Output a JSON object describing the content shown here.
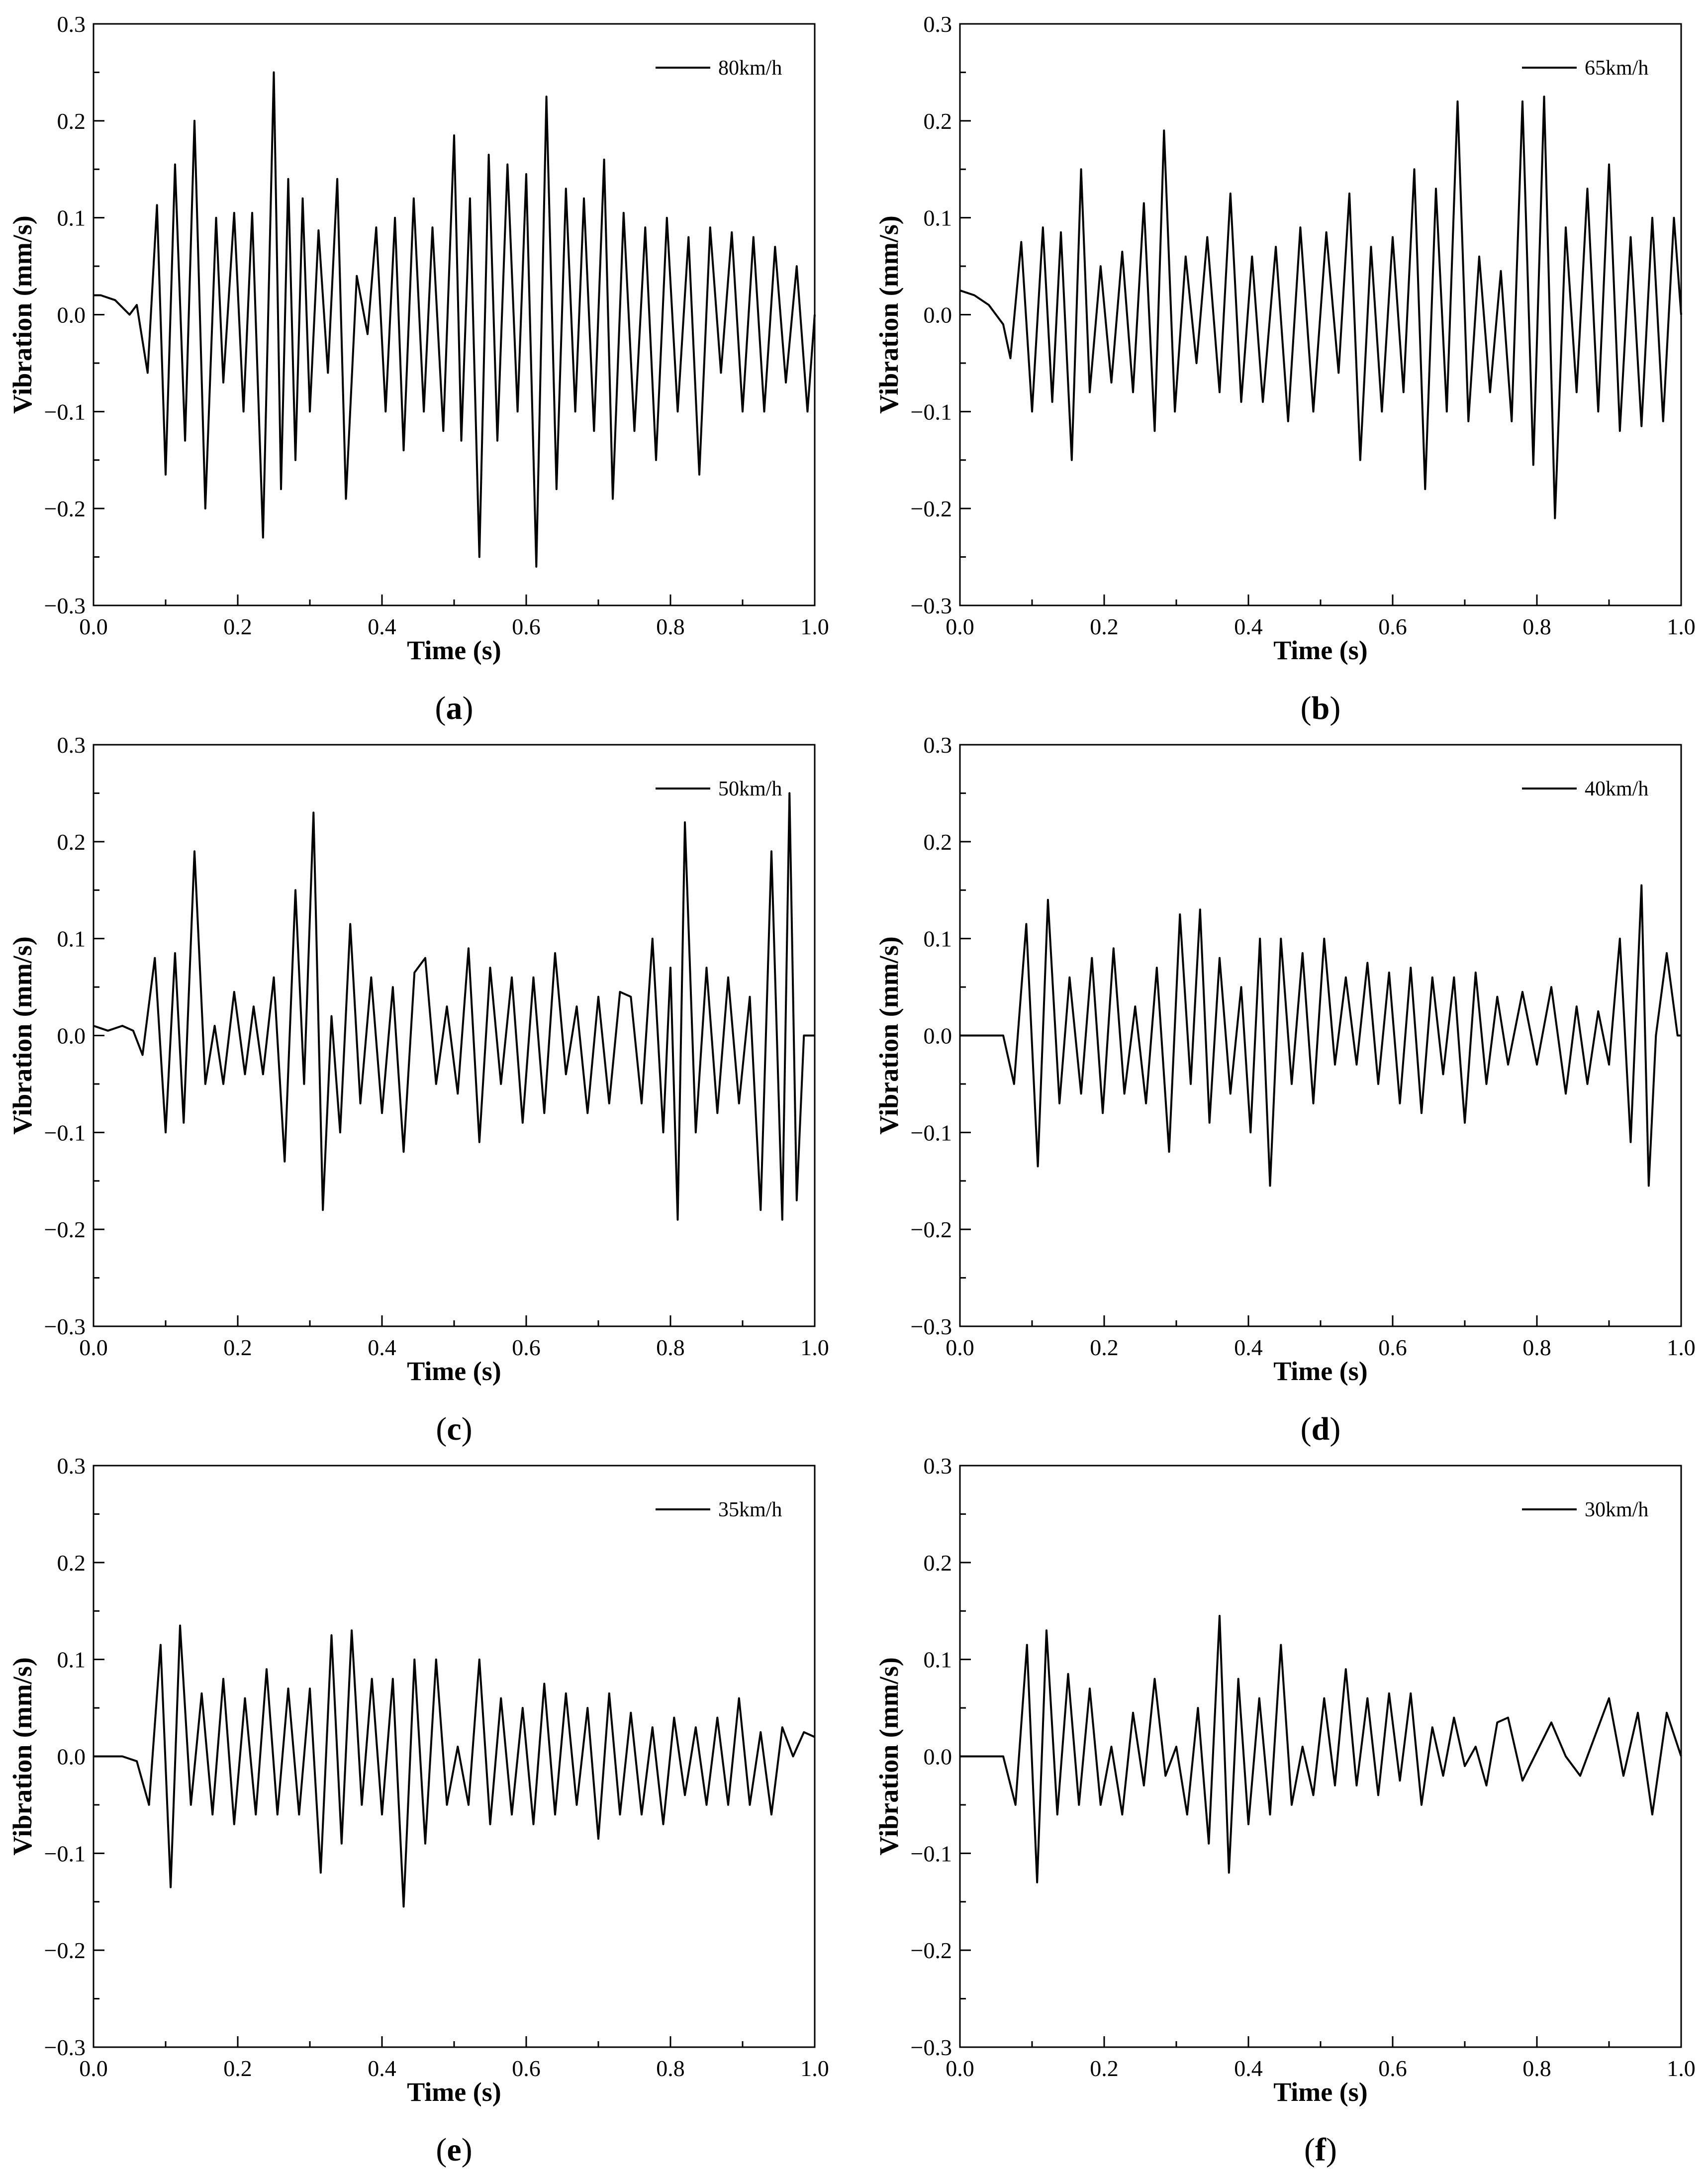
{
  "chart_data": [
    {
      "type": "line",
      "panel": "a",
      "xlabel": "Time (s)",
      "ylabel": "Vibration (mm/s)",
      "xlim": [
        0,
        1.0
      ],
      "ylim": [
        -0.3,
        0.3
      ],
      "xticks": [
        "0.0",
        "0.2",
        "0.4",
        "0.6",
        "0.8",
        "1.0"
      ],
      "yticks": [
        "0.3",
        "0.2",
        "0.1",
        "0.0",
        "−0.1",
        "−0.2",
        "−0.3"
      ],
      "legend_position": "top-right",
      "series": [
        {
          "name": "80km/h",
          "x": [
            0,
            0.01,
            0.03,
            0.05,
            0.06,
            0.075,
            0.088,
            0.1,
            0.113,
            0.127,
            0.14,
            0.155,
            0.17,
            0.18,
            0.195,
            0.208,
            0.22,
            0.235,
            0.25,
            0.26,
            0.27,
            0.28,
            0.29,
            0.3,
            0.312,
            0.325,
            0.338,
            0.35,
            0.365,
            0.38,
            0.392,
            0.405,
            0.418,
            0.43,
            0.444,
            0.458,
            0.47,
            0.485,
            0.5,
            0.51,
            0.522,
            0.535,
            0.548,
            0.56,
            0.574,
            0.588,
            0.6,
            0.614,
            0.628,
            0.642,
            0.655,
            0.668,
            0.68,
            0.694,
            0.708,
            0.72,
            0.735,
            0.75,
            0.765,
            0.78,
            0.795,
            0.81,
            0.825,
            0.84,
            0.855,
            0.87,
            0.885,
            0.9,
            0.915,
            0.93,
            0.945,
            0.96,
            0.975,
            0.99,
            1.0
          ],
          "values": [
            0.02,
            0.02,
            0.015,
            0.0,
            0.01,
            -0.06,
            0.113,
            -0.165,
            0.155,
            -0.13,
            0.2,
            -0.2,
            0.1,
            -0.07,
            0.105,
            -0.1,
            0.105,
            -0.23,
            0.25,
            -0.18,
            0.14,
            -0.15,
            0.12,
            -0.1,
            0.087,
            -0.06,
            0.14,
            -0.19,
            0.04,
            -0.02,
            0.09,
            -0.1,
            0.1,
            -0.14,
            0.12,
            -0.1,
            0.09,
            -0.12,
            0.185,
            -0.13,
            0.12,
            -0.25,
            0.165,
            -0.13,
            0.155,
            -0.1,
            0.145,
            -0.26,
            0.225,
            -0.18,
            0.13,
            -0.1,
            0.12,
            -0.12,
            0.16,
            -0.19,
            0.105,
            -0.12,
            0.09,
            -0.15,
            0.1,
            -0.1,
            0.08,
            -0.165,
            0.09,
            -0.06,
            0.085,
            -0.1,
            0.08,
            -0.1,
            0.07,
            -0.07,
            0.05,
            -0.1,
            0.0
          ]
        }
      ]
    },
    {
      "type": "line",
      "panel": "b",
      "xlabel": "Time (s)",
      "ylabel": "Vibration (mm/s)",
      "xlim": [
        0,
        1.0
      ],
      "ylim": [
        -0.3,
        0.3
      ],
      "xticks": [
        "0.0",
        "0.2",
        "0.4",
        "0.6",
        "0.8",
        "1.0"
      ],
      "yticks": [
        "0.3",
        "0.2",
        "0.1",
        "0.0",
        "−0.1",
        "−0.2",
        "−0.3"
      ],
      "legend_position": "top-right",
      "series": [
        {
          "name": "65km/h",
          "x": [
            0,
            0.02,
            0.04,
            0.06,
            0.07,
            0.085,
            0.1,
            0.115,
            0.128,
            0.14,
            0.155,
            0.168,
            0.18,
            0.195,
            0.21,
            0.225,
            0.24,
            0.255,
            0.27,
            0.283,
            0.298,
            0.313,
            0.328,
            0.343,
            0.36,
            0.375,
            0.39,
            0.405,
            0.42,
            0.438,
            0.455,
            0.472,
            0.49,
            0.508,
            0.525,
            0.54,
            0.555,
            0.57,
            0.585,
            0.6,
            0.615,
            0.63,
            0.645,
            0.66,
            0.675,
            0.69,
            0.705,
            0.72,
            0.735,
            0.75,
            0.765,
            0.78,
            0.795,
            0.81,
            0.825,
            0.84,
            0.855,
            0.87,
            0.885,
            0.9,
            0.915,
            0.93,
            0.945,
            0.96,
            0.975,
            0.99,
            1.0
          ],
          "values": [
            0.025,
            0.02,
            0.01,
            -0.01,
            -0.045,
            0.075,
            -0.1,
            0.09,
            -0.09,
            0.085,
            -0.15,
            0.15,
            -0.08,
            0.05,
            -0.07,
            0.065,
            -0.08,
            0.115,
            -0.12,
            0.19,
            -0.1,
            0.06,
            -0.05,
            0.08,
            -0.08,
            0.125,
            -0.09,
            0.06,
            -0.09,
            0.07,
            -0.11,
            0.09,
            -0.1,
            0.085,
            -0.06,
            0.125,
            -0.15,
            0.07,
            -0.1,
            0.08,
            -0.08,
            0.15,
            -0.18,
            0.13,
            -0.1,
            0.22,
            -0.11,
            0.06,
            -0.08,
            0.045,
            -0.11,
            0.22,
            -0.155,
            0.225,
            -0.21,
            0.09,
            -0.08,
            0.13,
            -0.1,
            0.155,
            -0.12,
            0.08,
            -0.115,
            0.1,
            -0.11,
            0.1,
            0.0
          ]
        }
      ]
    },
    {
      "type": "line",
      "panel": "c",
      "xlabel": "Time (s)",
      "ylabel": "Vibration (mm/s)",
      "xlim": [
        0,
        1.0
      ],
      "ylim": [
        -0.3,
        0.3
      ],
      "xticks": [
        "0.0",
        "0.2",
        "0.4",
        "0.6",
        "0.8",
        "1.0"
      ],
      "yticks": [
        "0.3",
        "0.2",
        "0.1",
        "0.0",
        "−0.1",
        "−0.2",
        "−0.3"
      ],
      "legend_position": "top-right",
      "series": [
        {
          "name": "50km/h",
          "x": [
            0,
            0.02,
            0.04,
            0.055,
            0.068,
            0.085,
            0.1,
            0.113,
            0.125,
            0.14,
            0.155,
            0.168,
            0.18,
            0.195,
            0.21,
            0.222,
            0.235,
            0.25,
            0.265,
            0.28,
            0.292,
            0.305,
            0.318,
            0.33,
            0.342,
            0.356,
            0.37,
            0.385,
            0.4,
            0.415,
            0.43,
            0.445,
            0.46,
            0.475,
            0.49,
            0.505,
            0.52,
            0.535,
            0.55,
            0.565,
            0.58,
            0.595,
            0.61,
            0.625,
            0.64,
            0.655,
            0.67,
            0.685,
            0.7,
            0.715,
            0.73,
            0.745,
            0.76,
            0.775,
            0.79,
            0.8,
            0.81,
            0.82,
            0.835,
            0.85,
            0.865,
            0.88,
            0.895,
            0.91,
            0.925,
            0.94,
            0.955,
            0.965,
            0.975,
            0.985,
            1.0
          ],
          "values": [
            0.01,
            0.005,
            0.01,
            0.005,
            -0.02,
            0.08,
            -0.1,
            0.085,
            -0.09,
            0.19,
            -0.05,
            0.01,
            -0.05,
            0.045,
            -0.04,
            0.03,
            -0.04,
            0.06,
            -0.13,
            0.15,
            -0.05,
            0.23,
            -0.18,
            0.02,
            -0.1,
            0.115,
            -0.07,
            0.06,
            -0.08,
            0.05,
            -0.12,
            0.065,
            0.08,
            -0.05,
            0.03,
            -0.06,
            0.09,
            -0.11,
            0.07,
            -0.05,
            0.06,
            -0.09,
            0.06,
            -0.08,
            0.085,
            -0.04,
            0.03,
            -0.08,
            0.04,
            -0.07,
            0.045,
            0.04,
            -0.07,
            0.1,
            -0.1,
            0.07,
            -0.19,
            0.22,
            -0.1,
            0.07,
            -0.08,
            0.06,
            -0.07,
            0.04,
            -0.18,
            0.19,
            -0.19,
            0.25,
            -0.17,
            0.0,
            0.0
          ]
        }
      ]
    },
    {
      "type": "line",
      "panel": "d",
      "xlabel": "Time (s)",
      "ylabel": "Vibration (mm/s)",
      "xlim": [
        0,
        1.0
      ],
      "ylim": [
        -0.3,
        0.3
      ],
      "xticks": [
        "0.0",
        "0.2",
        "0.4",
        "0.6",
        "0.8",
        "1.0"
      ],
      "yticks": [
        "0.3",
        "0.2",
        "0.1",
        "0.0",
        "−0.1",
        "−0.2",
        "−0.3"
      ],
      "legend_position": "top-right",
      "series": [
        {
          "name": "40km/h",
          "x": [
            0,
            0.02,
            0.04,
            0.06,
            0.075,
            0.092,
            0.108,
            0.122,
            0.138,
            0.152,
            0.168,
            0.183,
            0.198,
            0.213,
            0.228,
            0.243,
            0.258,
            0.273,
            0.29,
            0.305,
            0.32,
            0.333,
            0.346,
            0.36,
            0.375,
            0.39,
            0.403,
            0.416,
            0.43,
            0.445,
            0.46,
            0.475,
            0.49,
            0.505,
            0.52,
            0.535,
            0.55,
            0.565,
            0.58,
            0.595,
            0.61,
            0.625,
            0.64,
            0.655,
            0.67,
            0.685,
            0.7,
            0.715,
            0.73,
            0.745,
            0.76,
            0.78,
            0.8,
            0.82,
            0.84,
            0.855,
            0.87,
            0.885,
            0.9,
            0.915,
            0.93,
            0.945,
            0.955,
            0.965,
            0.98,
            0.995,
            1.0
          ],
          "values": [
            0.0,
            0.0,
            0.0,
            0.0,
            -0.05,
            0.115,
            -0.135,
            0.14,
            -0.07,
            0.06,
            -0.06,
            0.08,
            -0.08,
            0.09,
            -0.06,
            0.03,
            -0.07,
            0.07,
            -0.12,
            0.125,
            -0.05,
            0.13,
            -0.09,
            0.08,
            -0.06,
            0.05,
            -0.1,
            0.1,
            -0.155,
            0.1,
            -0.05,
            0.085,
            -0.07,
            0.1,
            -0.03,
            0.06,
            -0.03,
            0.075,
            -0.05,
            0.065,
            -0.07,
            0.07,
            -0.08,
            0.06,
            -0.04,
            0.06,
            -0.09,
            0.065,
            -0.05,
            0.04,
            -0.03,
            0.045,
            -0.03,
            0.05,
            -0.06,
            0.03,
            -0.05,
            0.025,
            -0.03,
            0.1,
            -0.11,
            0.155,
            -0.155,
            0.0,
            0.085,
            0.0,
            0.0
          ]
        }
      ]
    },
    {
      "type": "line",
      "panel": "e",
      "xlabel": "Time (s)",
      "ylabel": "Vibration (mm/s)",
      "xlim": [
        0,
        1.0
      ],
      "ylim": [
        -0.3,
        0.3
      ],
      "xticks": [
        "0.0",
        "0.2",
        "0.4",
        "0.6",
        "0.8",
        "1.0"
      ],
      "yticks": [
        "0.3",
        "0.2",
        "0.1",
        "0.0",
        "−0.1",
        "−0.2",
        "−0.3"
      ],
      "legend_position": "top-right",
      "series": [
        {
          "name": "35km/h",
          "x": [
            0,
            0.02,
            0.04,
            0.06,
            0.077,
            0.093,
            0.107,
            0.12,
            0.135,
            0.15,
            0.165,
            0.18,
            0.195,
            0.21,
            0.225,
            0.24,
            0.255,
            0.27,
            0.285,
            0.3,
            0.315,
            0.33,
            0.344,
            0.358,
            0.372,
            0.386,
            0.4,
            0.415,
            0.43,
            0.445,
            0.46,
            0.475,
            0.49,
            0.505,
            0.52,
            0.535,
            0.55,
            0.565,
            0.58,
            0.595,
            0.61,
            0.625,
            0.64,
            0.655,
            0.67,
            0.685,
            0.7,
            0.715,
            0.73,
            0.745,
            0.76,
            0.775,
            0.79,
            0.805,
            0.82,
            0.835,
            0.85,
            0.865,
            0.88,
            0.895,
            0.91,
            0.925,
            0.94,
            0.955,
            0.97,
            0.985,
            1.0
          ],
          "values": [
            0.0,
            0.0,
            0.0,
            -0.005,
            -0.05,
            0.115,
            -0.135,
            0.135,
            -0.05,
            0.065,
            -0.06,
            0.08,
            -0.07,
            0.06,
            -0.06,
            0.09,
            -0.06,
            0.07,
            -0.06,
            0.07,
            -0.12,
            0.125,
            -0.09,
            0.13,
            -0.05,
            0.08,
            -0.06,
            0.08,
            -0.155,
            0.1,
            -0.09,
            0.1,
            -0.05,
            0.01,
            -0.05,
            0.1,
            -0.07,
            0.06,
            -0.06,
            0.05,
            -0.07,
            0.075,
            -0.06,
            0.065,
            -0.05,
            0.05,
            -0.085,
            0.065,
            -0.06,
            0.045,
            -0.06,
            0.03,
            -0.07,
            0.04,
            -0.04,
            0.03,
            -0.05,
            0.04,
            -0.05,
            0.06,
            -0.05,
            0.025,
            -0.06,
            0.03,
            0.0,
            0.025,
            0.02
          ]
        }
      ]
    },
    {
      "type": "line",
      "panel": "f",
      "xlabel": "Time (s)",
      "ylabel": "Vibration (mm/s)",
      "xlim": [
        0,
        1.0
      ],
      "ylim": [
        -0.3,
        0.3
      ],
      "xticks": [
        "0.0",
        "0.2",
        "0.4",
        "0.6",
        "0.8",
        "1.0"
      ],
      "yticks": [
        "0.3",
        "0.2",
        "0.1",
        "0.0",
        "−0.1",
        "−0.2",
        "−0.3"
      ],
      "legend_position": "top-right",
      "series": [
        {
          "name": "30km/h",
          "x": [
            0,
            0.02,
            0.04,
            0.06,
            0.077,
            0.093,
            0.107,
            0.12,
            0.135,
            0.15,
            0.165,
            0.18,
            0.195,
            0.21,
            0.225,
            0.24,
            0.255,
            0.27,
            0.285,
            0.3,
            0.315,
            0.33,
            0.345,
            0.36,
            0.373,
            0.386,
            0.4,
            0.415,
            0.43,
            0.445,
            0.46,
            0.475,
            0.49,
            0.505,
            0.52,
            0.535,
            0.55,
            0.565,
            0.58,
            0.595,
            0.61,
            0.625,
            0.64,
            0.655,
            0.67,
            0.685,
            0.7,
            0.715,
            0.73,
            0.745,
            0.76,
            0.78,
            0.8,
            0.82,
            0.84,
            0.86,
            0.88,
            0.9,
            0.92,
            0.94,
            0.96,
            0.98,
            1.0
          ],
          "values": [
            0.0,
            0.0,
            0.0,
            0.0,
            -0.05,
            0.115,
            -0.13,
            0.13,
            -0.06,
            0.085,
            -0.05,
            0.07,
            -0.05,
            0.01,
            -0.06,
            0.045,
            -0.03,
            0.08,
            -0.02,
            0.01,
            -0.06,
            0.05,
            -0.09,
            0.145,
            -0.12,
            0.08,
            -0.07,
            0.06,
            -0.06,
            0.115,
            -0.05,
            0.01,
            -0.04,
            0.06,
            -0.03,
            0.09,
            -0.03,
            0.06,
            -0.04,
            0.065,
            -0.025,
            0.065,
            -0.05,
            0.03,
            -0.02,
            0.04,
            -0.01,
            0.01,
            -0.03,
            0.035,
            0.04,
            -0.025,
            0.005,
            0.035,
            0.0,
            -0.02,
            0.02,
            0.06,
            -0.02,
            0.045,
            -0.06,
            0.045,
            0.0
          ]
        }
      ]
    }
  ],
  "panel_labels": [
    "a",
    "b",
    "c",
    "d",
    "e",
    "f"
  ]
}
